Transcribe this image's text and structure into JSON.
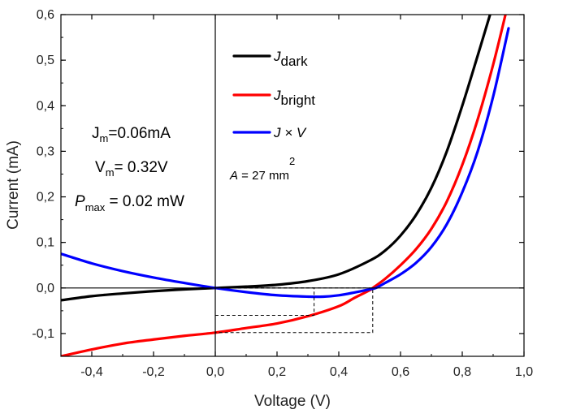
{
  "chart_data": {
    "type": "line",
    "xlabel": "Voltage (V)",
    "ylabel": "Current (mA)",
    "xlim": [
      -0.5,
      1.0
    ],
    "ylim": [
      -0.15,
      0.6
    ],
    "x_ticks": [
      {
        "value": -0.4,
        "label": "-0,4"
      },
      {
        "value": -0.2,
        "label": "-0,2"
      },
      {
        "value": 0.0,
        "label": "0,0"
      },
      {
        "value": 0.2,
        "label": "0,2"
      },
      {
        "value": 0.4,
        "label": "0,4"
      },
      {
        "value": 0.6,
        "label": "0,6"
      },
      {
        "value": 0.8,
        "label": "0,8"
      },
      {
        "value": 1.0,
        "label": "1,0"
      }
    ],
    "y_ticks": [
      {
        "value": -0.1,
        "label": "-0,1"
      },
      {
        "value": 0.0,
        "label": "0,0"
      },
      {
        "value": 0.1,
        "label": "0,1"
      },
      {
        "value": 0.2,
        "label": "0,2"
      },
      {
        "value": 0.3,
        "label": "0,3"
      },
      {
        "value": 0.4,
        "label": "0,4"
      },
      {
        "value": 0.5,
        "label": "0,5"
      },
      {
        "value": 0.6,
        "label": "0,6"
      }
    ],
    "grid": false,
    "legend_position": "top-center",
    "series": [
      {
        "key": "dark",
        "label_main": "J",
        "label_sub": "dark",
        "color": "#000000",
        "x": [
          -0.5,
          -0.4,
          -0.3,
          -0.2,
          -0.1,
          0.0,
          0.1,
          0.2,
          0.3,
          0.4,
          0.5,
          0.55,
          0.6,
          0.65,
          0.7,
          0.75,
          0.8,
          0.85,
          0.89
        ],
        "y": [
          -0.027,
          -0.018,
          -0.012,
          -0.007,
          -0.003,
          0.0,
          0.003,
          0.007,
          0.015,
          0.03,
          0.06,
          0.082,
          0.115,
          0.16,
          0.22,
          0.3,
          0.4,
          0.51,
          0.6
        ]
      },
      {
        "key": "bright",
        "label_main": "J",
        "label_sub": "bright",
        "color": "#ff0000",
        "x": [
          -0.5,
          -0.4,
          -0.3,
          -0.2,
          -0.1,
          0.0,
          0.1,
          0.2,
          0.3,
          0.4,
          0.45,
          0.5,
          0.51,
          0.55,
          0.6,
          0.65,
          0.7,
          0.75,
          0.8,
          0.85,
          0.9,
          0.94
        ],
        "y": [
          -0.15,
          -0.135,
          -0.122,
          -0.113,
          -0.105,
          -0.098,
          -0.088,
          -0.078,
          -0.062,
          -0.04,
          -0.022,
          -0.005,
          0.0,
          0.02,
          0.05,
          0.085,
          0.13,
          0.19,
          0.27,
          0.37,
          0.49,
          0.6
        ]
      },
      {
        "key": "power",
        "label_main": "J × V",
        "label_sub": "",
        "color": "#0000ff",
        "x": [
          -0.5,
          -0.4,
          -0.3,
          -0.2,
          -0.1,
          0.0,
          0.1,
          0.2,
          0.3,
          0.35,
          0.4,
          0.45,
          0.5,
          0.52,
          0.55,
          0.6,
          0.65,
          0.7,
          0.75,
          0.8,
          0.85,
          0.9,
          0.95
        ],
        "y": [
          0.075,
          0.054,
          0.037,
          0.023,
          0.011,
          0.0,
          -0.009,
          -0.016,
          -0.019,
          -0.019,
          -0.016,
          -0.01,
          -0.003,
          0.0,
          0.011,
          0.03,
          0.055,
          0.09,
          0.14,
          0.21,
          0.3,
          0.42,
          0.57
        ]
      }
    ],
    "mpp_rectangles": [
      {
        "x0": 0.0,
        "x1": 0.32,
        "y0": -0.06,
        "y1": 0.0
      },
      {
        "x0": 0.0,
        "x1": 0.51,
        "y0": -0.098,
        "y1": 0.0
      }
    ],
    "annotations": {
      "jm": {
        "main": "J",
        "sub": "m",
        "rest": "=0.06mA"
      },
      "vm": {
        "main": "V",
        "sub": "m",
        "rest": "= 0.32V"
      },
      "pmax": {
        "main": "P",
        "sub": "max",
        "rest": " = 0.02 mW"
      },
      "area": {
        "main": "A",
        "rest": " = 27 mm",
        "sup": "2"
      }
    }
  }
}
